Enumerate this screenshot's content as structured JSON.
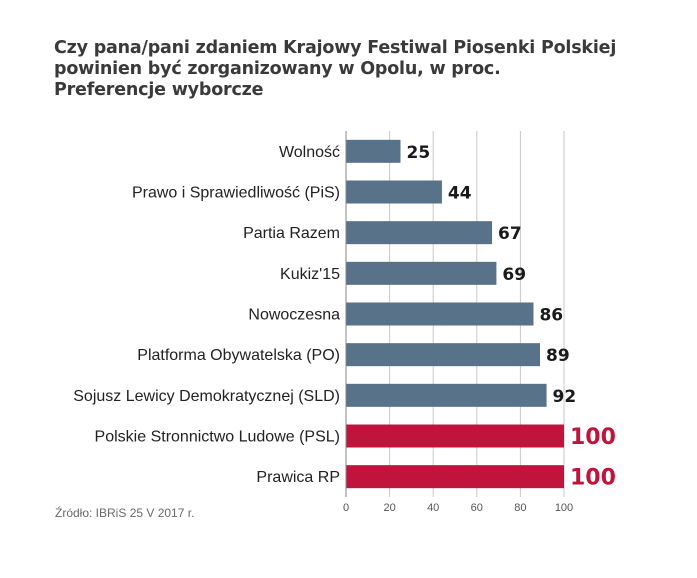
{
  "title_lines": [
    "Czy pana/pani zdaniem Krajowy Festiwal Piosenki Polskiej",
    "powinien być zorganizowany w Opolu, w proc.",
    "Preferencje wyborcze"
  ],
  "source": "Źródło: IBRiS 25 V 2017 r.",
  "colors": {
    "default_bar": "#58728a",
    "highlight_bar": "#c0143c",
    "label": "#1a1a1a",
    "highlight_label": "#c0143c",
    "axis": "#555555"
  },
  "chart_data": {
    "type": "bar",
    "orientation": "horizontal",
    "title": "Czy pana/pani zdaniem Krajowy Festiwal Piosenki Polskiej powinien być zorganizowany w Opolu, w proc. Preferencje wyborcze",
    "categories": [
      "Wolność",
      "Prawo i Sprawiedliwość (PiS)",
      "Partia Razem",
      "Kukiz'15",
      "Nowoczesna",
      "Platforma Obywatelska (PO)",
      "Sojusz Lewicy Demokratycznej (SLD)",
      "Polskie Stronnictwo Ludowe (PSL)",
      "Prawica RP"
    ],
    "values": [
      25,
      44,
      67,
      69,
      86,
      89,
      92,
      100,
      100
    ],
    "highlighted": [
      false,
      false,
      false,
      false,
      false,
      false,
      false,
      true,
      true
    ],
    "xlim": [
      0,
      100
    ],
    "xticks": [
      0,
      20,
      40,
      60,
      80,
      100
    ],
    "grid": true,
    "xlabel": "",
    "ylabel": ""
  }
}
